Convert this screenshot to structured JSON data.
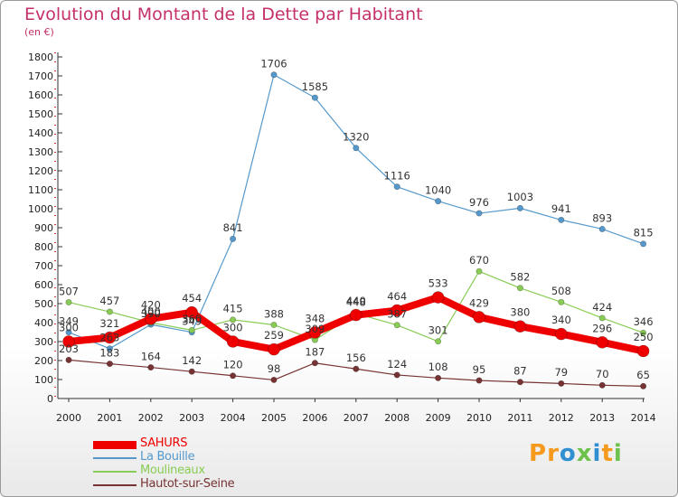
{
  "title": "Evolution du Montant de la Dette par Habitant",
  "subtitle": "(en €)",
  "logo": {
    "text": "Proxiti",
    "colors": [
      "#f59a1c",
      "#f59a1c",
      "#2f8fd0",
      "#6cc24a",
      "#2f8fd0",
      "#f59a1c",
      "#6cc24a"
    ]
  },
  "chart_data": {
    "type": "line",
    "title": "Evolution du Montant de la Dette par Habitant",
    "ylabel": "(en €)",
    "xlabel": "",
    "ylim": [
      0,
      1800
    ],
    "yticks": [
      0,
      100,
      200,
      300,
      400,
      500,
      600,
      700,
      800,
      900,
      1000,
      1100,
      1200,
      1300,
      1400,
      1500,
      1600,
      1700,
      1800
    ],
    "x": [
      "2000",
      "2001",
      "2002",
      "2003",
      "2004",
      "2005",
      "2006",
      "2007",
      "2008",
      "2009",
      "2010",
      "2011",
      "2012",
      "2013",
      "2014"
    ],
    "grid": false,
    "legend_position": "bottom-left",
    "series": [
      {
        "name": "SAHURS",
        "color": "#ee0000",
        "values": [
          300,
          321,
          420,
          454,
          300,
          259,
          348,
          440,
          464,
          533,
          429,
          380,
          340,
          296,
          250
        ]
      },
      {
        "name": "La Bouille",
        "color": "#5599cc",
        "values": [
          349,
          263,
          390,
          349,
          841,
          1706,
          1585,
          1320,
          1116,
          1040,
          976,
          1003,
          941,
          893,
          815
        ]
      },
      {
        "name": "Moulineaux",
        "color": "#88cc55",
        "values": [
          507,
          457,
          400,
          360,
          415,
          388,
          309,
          448,
          387,
          301,
          670,
          582,
          508,
          424,
          346
        ]
      },
      {
        "name": "Hautot-sur-Seine",
        "color": "#773333",
        "values": [
          203,
          183,
          164,
          142,
          120,
          98,
          187,
          156,
          124,
          108,
          95,
          87,
          79,
          70,
          65
        ]
      }
    ]
  }
}
